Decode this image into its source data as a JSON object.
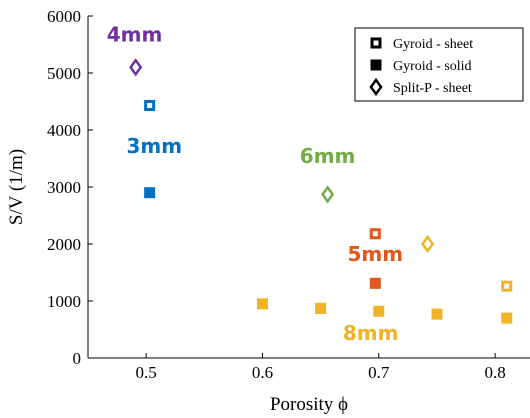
{
  "chart_data": {
    "type": "scatter",
    "xlabel": "Porosity ϕ",
    "ylabel": "S/V (1/m)",
    "xlim": [
      0.45,
      0.83
    ],
    "ylim": [
      0,
      6000
    ],
    "xticks": [
      0.5,
      0.6,
      0.7,
      0.8
    ],
    "xtick_labels": [
      "0.5",
      "0.6",
      "0.7",
      "0.8"
    ],
    "yticks": [
      0,
      1000,
      2000,
      3000,
      4000,
      5000,
      6000
    ],
    "ytick_labels": [
      "0",
      "1000",
      "2000",
      "3000",
      "4000",
      "5000",
      "6000"
    ],
    "grid": false,
    "legend_position": "top-right",
    "legend": [
      {
        "label": "Gyroid - sheet",
        "marker": "square-open"
      },
      {
        "label": "Gyroid - solid",
        "marker": "square-filled"
      },
      {
        "label": "Split-P - sheet",
        "marker": "diamond-open"
      }
    ],
    "series": [
      {
        "group": "4mm",
        "color": "#7030A0",
        "points": [
          {
            "x": 0.491,
            "y": 5100,
            "marker": "diamond-open"
          }
        ]
      },
      {
        "group": "3mm",
        "color": "#0070C0",
        "points": [
          {
            "x": 0.503,
            "y": 4430,
            "marker": "square-open"
          },
          {
            "x": 0.503,
            "y": 2900,
            "marker": "square-filled"
          }
        ]
      },
      {
        "group": "6mm",
        "color": "#70AD47",
        "points": [
          {
            "x": 0.656,
            "y": 2870,
            "marker": "diamond-open"
          }
        ]
      },
      {
        "group": "5mm",
        "color": "#E0561B",
        "points": [
          {
            "x": 0.697,
            "y": 2180,
            "marker": "square-open"
          },
          {
            "x": 0.697,
            "y": 1310,
            "marker": "square-filled"
          }
        ]
      },
      {
        "group": "8mm",
        "color": "#F0B323",
        "points": [
          {
            "x": 0.742,
            "y": 2000,
            "marker": "diamond-open"
          },
          {
            "x": 0.81,
            "y": 1260,
            "marker": "square-open"
          },
          {
            "x": 0.6,
            "y": 950,
            "marker": "square-filled"
          },
          {
            "x": 0.65,
            "y": 870,
            "marker": "square-filled"
          },
          {
            "x": 0.7,
            "y": 820,
            "marker": "square-filled"
          },
          {
            "x": 0.75,
            "y": 770,
            "marker": "square-filled"
          },
          {
            "x": 0.81,
            "y": 700,
            "marker": "square-filled"
          }
        ]
      }
    ],
    "annotations": [
      {
        "text": "4mm",
        "color": "#7030A0",
        "x": 0.49,
        "y": 5550
      },
      {
        "text": "3mm",
        "color": "#0070C0",
        "x": 0.507,
        "y": 3600
      },
      {
        "text": "6mm",
        "color": "#70AD47",
        "x": 0.656,
        "y": 3420
      },
      {
        "text": "5mm",
        "color": "#E0561B",
        "x": 0.697,
        "y": 1700
      },
      {
        "text": "8mm",
        "color": "#F0B323",
        "x": 0.693,
        "y": 320
      }
    ]
  }
}
